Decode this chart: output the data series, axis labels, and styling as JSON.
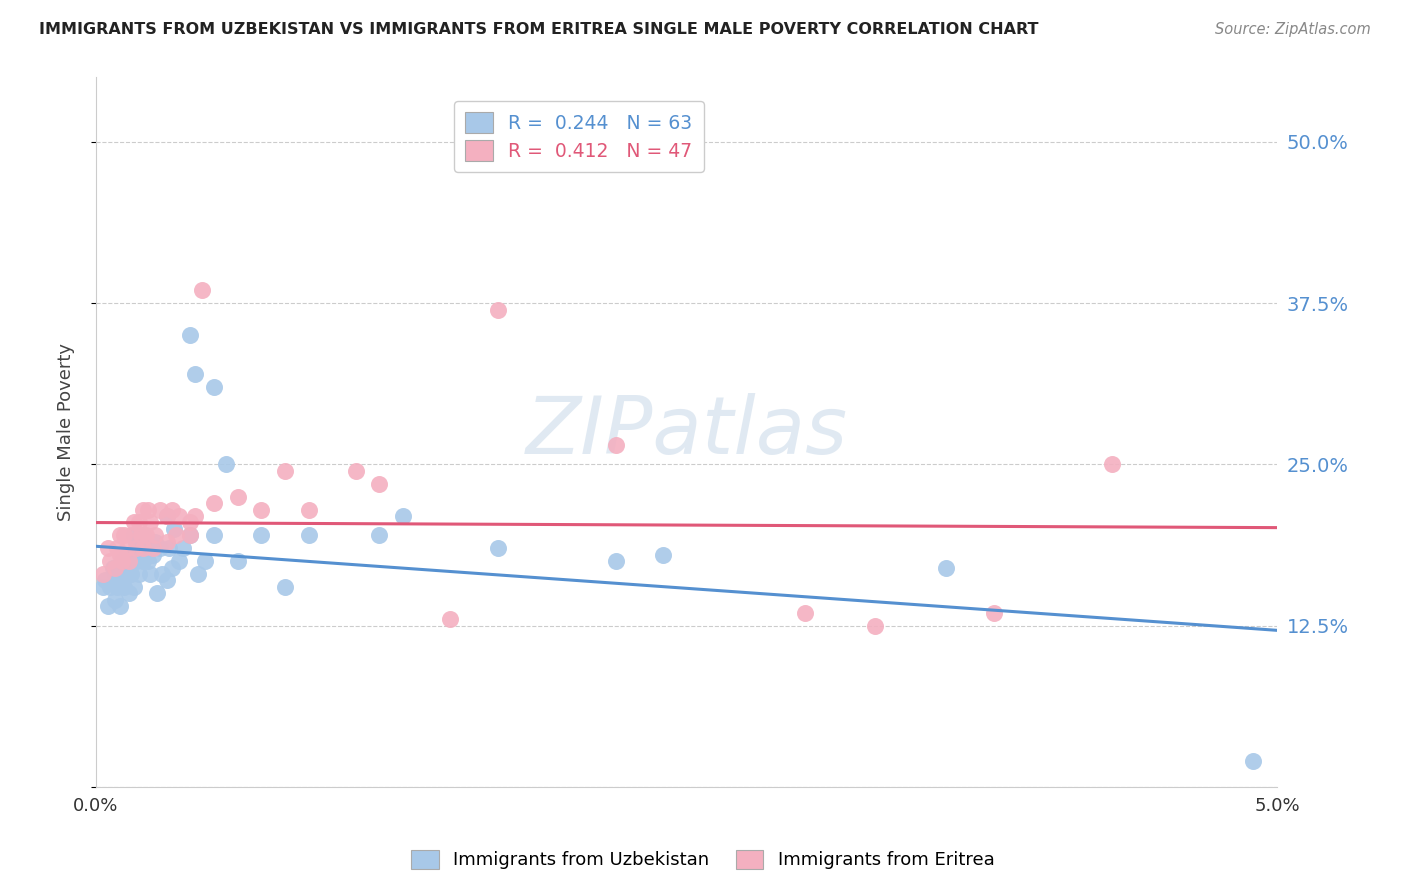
{
  "title": "IMMIGRANTS FROM UZBEKISTAN VS IMMIGRANTS FROM ERITREA SINGLE MALE POVERTY CORRELATION CHART",
  "source": "Source: ZipAtlas.com",
  "ylabel": "Single Male Poverty",
  "uzbekistan_color": "#a8c8e8",
  "uzbekistan_edge": "#7aacd4",
  "eritrea_color": "#f4b0c0",
  "eritrea_edge": "#e080a0",
  "uzbekistan_line_color": "#5590d0",
  "eritrea_line_color": "#e05878",
  "uzbekistan_R": 0.244,
  "uzbekistan_N": 63,
  "eritrea_R": 0.412,
  "eritrea_N": 47,
  "watermark": "ZIPatlas",
  "watermark_color": "#c8d8e8",
  "xlim": [
    0.0,
    0.05
  ],
  "ylim": [
    0.0,
    0.55
  ],
  "yticks": [
    0.0,
    0.125,
    0.25,
    0.375,
    0.5
  ],
  "ytick_labels": [
    "",
    "12.5%",
    "25.0%",
    "37.5%",
    "50.0%"
  ],
  "xticks": [
    0.0,
    0.01,
    0.02,
    0.03,
    0.04,
    0.05
  ],
  "xtick_labels": [
    "0.0%",
    "",
    "",
    "",
    "",
    "5.0%"
  ],
  "uzbekistan_x": [
    0.0003,
    0.0004,
    0.0005,
    0.0006,
    0.0007,
    0.0008,
    0.0008,
    0.0009,
    0.001,
    0.001,
    0.0011,
    0.0011,
    0.0012,
    0.0012,
    0.0013,
    0.0013,
    0.0014,
    0.0014,
    0.0015,
    0.0015,
    0.0016,
    0.0016,
    0.0017,
    0.0017,
    0.0018,
    0.0018,
    0.0019,
    0.002,
    0.002,
    0.0021,
    0.0022,
    0.0023,
    0.0024,
    0.0025,
    0.0026,
    0.0027,
    0.0028,
    0.003,
    0.003,
    0.0031,
    0.0032,
    0.0033,
    0.0035,
    0.0037,
    0.004,
    0.004,
    0.0042,
    0.0043,
    0.0046,
    0.005,
    0.005,
    0.0055,
    0.006,
    0.007,
    0.008,
    0.009,
    0.012,
    0.013,
    0.017,
    0.022,
    0.024,
    0.036,
    0.049
  ],
  "uzbekistan_y": [
    0.155,
    0.16,
    0.14,
    0.155,
    0.17,
    0.145,
    0.165,
    0.155,
    0.16,
    0.14,
    0.175,
    0.16,
    0.165,
    0.155,
    0.18,
    0.165,
    0.15,
    0.175,
    0.165,
    0.18,
    0.155,
    0.195,
    0.19,
    0.175,
    0.165,
    0.19,
    0.185,
    0.175,
    0.195,
    0.185,
    0.175,
    0.165,
    0.18,
    0.19,
    0.15,
    0.185,
    0.165,
    0.16,
    0.21,
    0.185,
    0.17,
    0.2,
    0.175,
    0.185,
    0.195,
    0.35,
    0.32,
    0.165,
    0.175,
    0.31,
    0.195,
    0.25,
    0.175,
    0.195,
    0.155,
    0.195,
    0.195,
    0.21,
    0.185,
    0.175,
    0.18,
    0.17,
    0.02
  ],
  "eritrea_x": [
    0.0003,
    0.0005,
    0.0006,
    0.0008,
    0.0009,
    0.001,
    0.001,
    0.0011,
    0.0012,
    0.0013,
    0.0014,
    0.0015,
    0.0016,
    0.0017,
    0.0018,
    0.0019,
    0.002,
    0.002,
    0.0021,
    0.0022,
    0.0023,
    0.0024,
    0.0025,
    0.0027,
    0.003,
    0.003,
    0.0032,
    0.0034,
    0.0035,
    0.004,
    0.004,
    0.0042,
    0.0045,
    0.005,
    0.006,
    0.007,
    0.008,
    0.009,
    0.011,
    0.012,
    0.015,
    0.017,
    0.022,
    0.03,
    0.033,
    0.038,
    0.043
  ],
  "eritrea_y": [
    0.165,
    0.185,
    0.175,
    0.17,
    0.185,
    0.18,
    0.195,
    0.175,
    0.195,
    0.185,
    0.175,
    0.195,
    0.205,
    0.185,
    0.205,
    0.195,
    0.185,
    0.215,
    0.195,
    0.215,
    0.205,
    0.185,
    0.195,
    0.215,
    0.21,
    0.19,
    0.215,
    0.195,
    0.21,
    0.205,
    0.195,
    0.21,
    0.385,
    0.22,
    0.225,
    0.215,
    0.245,
    0.215,
    0.245,
    0.235,
    0.13,
    0.37,
    0.265,
    0.135,
    0.125,
    0.135,
    0.25
  ]
}
